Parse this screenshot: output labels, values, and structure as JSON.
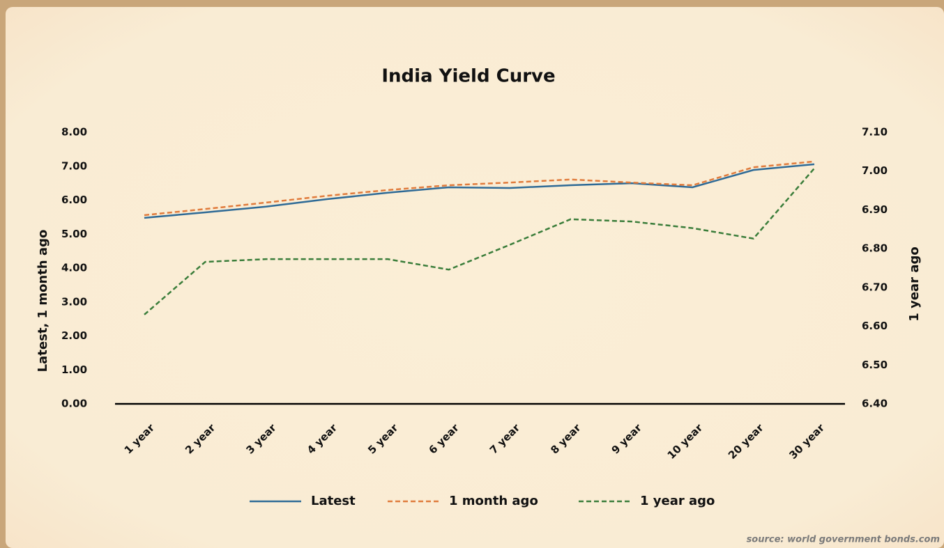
{
  "chart_data": {
    "type": "line",
    "title": "India Yield Curve",
    "categories": [
      "1 year",
      "2 year",
      "3 year",
      "4 year",
      "5 year",
      "6 year",
      "7 year",
      "8 year",
      "9 year",
      "10 year",
      "20 year",
      "30 year"
    ],
    "ylabel": "Latest, 1 month ago",
    "y2label": "1 year ago",
    "ylim": [
      0,
      8
    ],
    "yticks": [
      {
        "value": 0,
        "label": "0.00"
      },
      {
        "value": 1,
        "label": "1.00"
      },
      {
        "value": 2,
        "label": "2.00"
      },
      {
        "value": 3,
        "label": "3.00"
      },
      {
        "value": 4,
        "label": "4.00"
      },
      {
        "value": 5,
        "label": "5.00"
      },
      {
        "value": 6,
        "label": "6.00"
      },
      {
        "value": 7,
        "label": "7.00"
      },
      {
        "value": 8,
        "label": "8.00"
      }
    ],
    "y2lim": [
      6.4,
      7.1
    ],
    "y2ticks": [
      {
        "value": 6.4,
        "label": "6.40"
      },
      {
        "value": 6.5,
        "label": "6.50"
      },
      {
        "value": 6.6,
        "label": "6.60"
      },
      {
        "value": 6.7,
        "label": "6.70"
      },
      {
        "value": 6.8,
        "label": "6.80"
      },
      {
        "value": 6.9,
        "label": "6.90"
      },
      {
        "value": 7.0,
        "label": "7.00"
      },
      {
        "value": 7.1,
        "label": "7.10"
      }
    ],
    "series": [
      {
        "name": "Latest",
        "color": "#2e6a96",
        "style": "solid",
        "values": [
          5.48,
          5.64,
          5.81,
          6.03,
          6.22,
          6.38,
          6.36,
          6.44,
          6.5,
          6.38,
          6.89,
          7.06
        ]
      },
      {
        "name": "1 month ago",
        "color": "#e07b3c",
        "style": "dashed",
        "values": [
          5.56,
          5.74,
          5.93,
          6.13,
          6.3,
          6.44,
          6.52,
          6.61,
          6.52,
          6.44,
          6.97,
          7.14
        ]
      },
      {
        "name": "1 year ago",
        "color": "#3a7d3a",
        "style": "dashed",
        "axis": "y2",
        "values": [
          6.63,
          6.766,
          6.773,
          6.773,
          6.773,
          6.746,
          6.81,
          6.876,
          6.87,
          6.853,
          6.826,
          7.007
        ]
      }
    ],
    "source": "source: world government bonds.com"
  }
}
